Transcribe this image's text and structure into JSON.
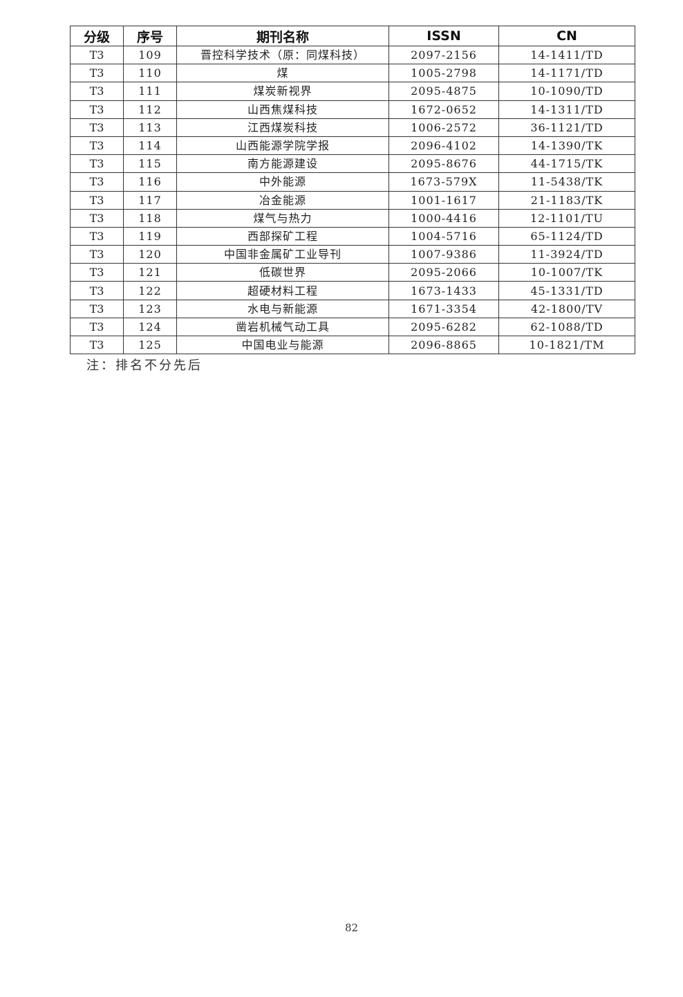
{
  "table": {
    "headers": [
      "分级",
      "序号",
      "期刊名称",
      "ISSN",
      "CN"
    ],
    "rows": [
      [
        "T3",
        "109",
        "晋控科学技术（原：同煤科技）",
        "2097-2156",
        "14-1411/TD"
      ],
      [
        "T3",
        "110",
        "煤",
        "1005-2798",
        "14-1171/TD"
      ],
      [
        "T3",
        "111",
        "煤炭新视界",
        "2095-4875",
        "10-1090/TD"
      ],
      [
        "T3",
        "112",
        "山西焦煤科技",
        "1672-0652",
        "14-1311/TD"
      ],
      [
        "T3",
        "113",
        "江西煤炭科技",
        "1006-2572",
        "36-1121/TD"
      ],
      [
        "T3",
        "114",
        "山西能源学院学报",
        "2096-4102",
        "14-1390/TK"
      ],
      [
        "T3",
        "115",
        "南方能源建设",
        "2095-8676",
        "44-1715/TK"
      ],
      [
        "T3",
        "116",
        "中外能源",
        "1673-579X",
        "11-5438/TK"
      ],
      [
        "T3",
        "117",
        "冶金能源",
        "1001-1617",
        "21-1183/TK"
      ],
      [
        "T3",
        "118",
        "煤气与热力",
        "1000-4416",
        "12-1101/TU"
      ],
      [
        "T3",
        "119",
        "西部探矿工程",
        "1004-5716",
        "65-1124/TD"
      ],
      [
        "T3",
        "120",
        "中国非金属矿工业导刊",
        "1007-9386",
        "11-3924/TD"
      ],
      [
        "T3",
        "121",
        "低碳世界",
        "2095-2066",
        "10-1007/TK"
      ],
      [
        "T3",
        "122",
        "超硬材料工程",
        "1673-1433",
        "45-1331/TD"
      ],
      [
        "T3",
        "123",
        "水电与新能源",
        "1671-3354",
        "42-1800/TV"
      ],
      [
        "T3",
        "124",
        "凿岩机械气动工具",
        "2095-6282",
        "62-1088/TD"
      ],
      [
        "T3",
        "125",
        "中国电业与能源",
        "2096-8865",
        "10-1821/TM"
      ]
    ]
  },
  "note": "注：排名不分先后",
  "page_number": "82"
}
